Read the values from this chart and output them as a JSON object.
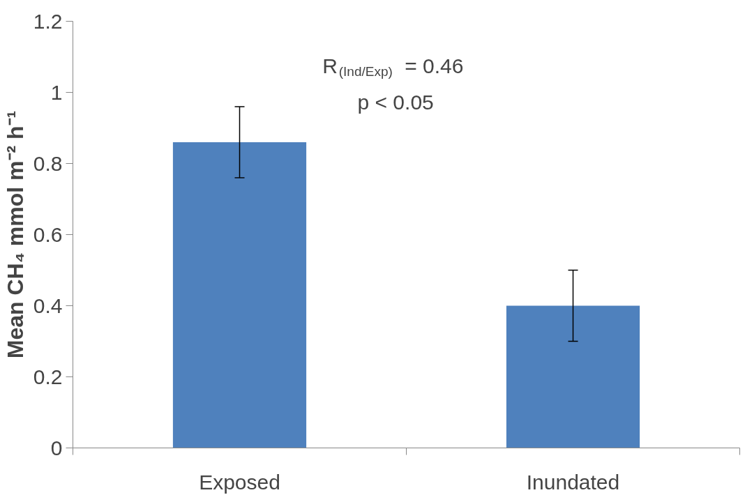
{
  "chart_data": {
    "type": "bar",
    "categories": [
      "Exposed",
      "Inundated"
    ],
    "values": [
      0.86,
      0.4
    ],
    "errors": [
      0.1,
      0.1
    ],
    "color": "#4f81bd",
    "ylabel": "Mean CH₄ mmol m⁻² h⁻¹",
    "ylim": [
      0,
      1.2
    ],
    "yticks": [
      0,
      0.2,
      0.4,
      0.6,
      0.8,
      1,
      1.2
    ],
    "annotations": [
      "R$_{(Ind/Exp)}$ = 0.46",
      "p < 0.05"
    ],
    "grid": false
  }
}
